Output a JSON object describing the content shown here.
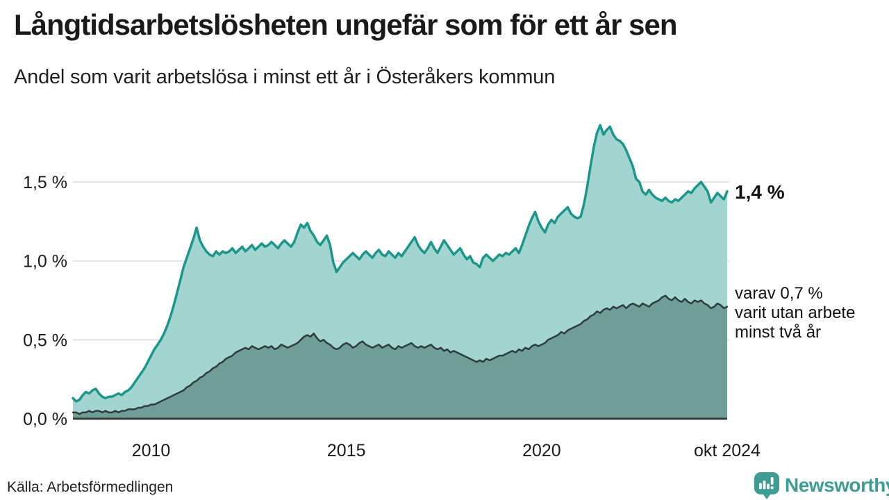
{
  "header": {
    "title": "Långtidsarbetslösheten ungefär som för ett år sen",
    "subtitle": "Andel som varit arbetslösa i minst ett år i Österåkers kommun"
  },
  "chart_data": {
    "type": "area",
    "unit": "%",
    "x_start": "2008-01",
    "x_end": "2024-10",
    "grid": "horizontal",
    "colors": {
      "grid": "#e4e4e4",
      "axis": "#3a3a3a",
      "text": "#1a1a1a"
    },
    "y_axis": {
      "ticks": [
        {
          "value": 0,
          "label": "0,0 %"
        },
        {
          "value": 0.5,
          "label": "0,5 %"
        },
        {
          "value": 1,
          "label": "1,0 %"
        },
        {
          "value": 1.5,
          "label": "1,5 %"
        }
      ],
      "ylim": [
        0,
        1.95
      ]
    },
    "x_axis": {
      "ticks": [
        {
          "index": 24,
          "label": "2010"
        },
        {
          "index": 84,
          "label": "2015"
        },
        {
          "index": 144,
          "label": "2020"
        },
        {
          "index": 201,
          "label": "okt 2024"
        }
      ]
    },
    "series": [
      {
        "name": "Arbetslösa minst ett år",
        "line_color": "#1a968c",
        "fill_color": "#a3d5d0",
        "line_width": 3.5,
        "end_label": "1,4 %",
        "values": [
          0.13,
          0.11,
          0.12,
          0.15,
          0.17,
          0.16,
          0.18,
          0.19,
          0.16,
          0.14,
          0.13,
          0.14,
          0.14,
          0.15,
          0.16,
          0.15,
          0.17,
          0.18,
          0.2,
          0.23,
          0.26,
          0.29,
          0.32,
          0.36,
          0.4,
          0.44,
          0.47,
          0.5,
          0.54,
          0.59,
          0.65,
          0.72,
          0.8,
          0.88,
          0.96,
          1.02,
          1.08,
          1.14,
          1.21,
          1.13,
          1.09,
          1.06,
          1.04,
          1.03,
          1.06,
          1.04,
          1.06,
          1.05,
          1.06,
          1.08,
          1.05,
          1.07,
          1.09,
          1.06,
          1.08,
          1.1,
          1.07,
          1.09,
          1.11,
          1.09,
          1.1,
          1.12,
          1.1,
          1.08,
          1.11,
          1.13,
          1.11,
          1.09,
          1.12,
          1.18,
          1.23,
          1.21,
          1.24,
          1.19,
          1.16,
          1.12,
          1.1,
          1.13,
          1.16,
          1.1,
          0.99,
          0.93,
          0.96,
          0.99,
          1.01,
          1.03,
          1.05,
          1.03,
          1.01,
          1.04,
          1.06,
          1.04,
          1.02,
          1.05,
          1.07,
          1.04,
          1.03,
          1.06,
          1.04,
          1.02,
          1.05,
          1.03,
          1.06,
          1.09,
          1.12,
          1.15,
          1.1,
          1.07,
          1.05,
          1.08,
          1.12,
          1.08,
          1.05,
          1.09,
          1.13,
          1.1,
          1.07,
          1.04,
          1.06,
          1.08,
          1.04,
          1.01,
          1.03,
          0.99,
          0.98,
          0.96,
          1.02,
          1.04,
          1.02,
          1.0,
          1.02,
          1.04,
          1.03,
          1.05,
          1.04,
          1.06,
          1.08,
          1.05,
          1.1,
          1.16,
          1.22,
          1.27,
          1.31,
          1.25,
          1.21,
          1.18,
          1.23,
          1.26,
          1.24,
          1.28,
          1.3,
          1.32,
          1.34,
          1.3,
          1.28,
          1.27,
          1.28,
          1.36,
          1.47,
          1.6,
          1.72,
          1.81,
          1.86,
          1.8,
          1.83,
          1.85,
          1.8,
          1.77,
          1.76,
          1.74,
          1.7,
          1.65,
          1.6,
          1.52,
          1.5,
          1.44,
          1.42,
          1.45,
          1.42,
          1.4,
          1.39,
          1.38,
          1.4,
          1.38,
          1.37,
          1.39,
          1.38,
          1.4,
          1.42,
          1.44,
          1.43,
          1.46,
          1.48,
          1.5,
          1.47,
          1.44,
          1.37,
          1.4,
          1.43,
          1.41,
          1.39,
          1.44
        ]
      },
      {
        "name": "varav utan arbete minst två år",
        "line_color": "#2e3c3a",
        "fill_color": "#6f9e99",
        "line_width": 2.5,
        "end_label_lines": [
          "varav 0,7 %",
          "varit utan arbete",
          "minst två år"
        ],
        "values": [
          0.04,
          0.04,
          0.03,
          0.04,
          0.04,
          0.05,
          0.04,
          0.05,
          0.05,
          0.04,
          0.05,
          0.04,
          0.04,
          0.05,
          0.04,
          0.05,
          0.05,
          0.06,
          0.06,
          0.06,
          0.07,
          0.07,
          0.08,
          0.08,
          0.09,
          0.09,
          0.1,
          0.11,
          0.12,
          0.13,
          0.14,
          0.15,
          0.16,
          0.17,
          0.18,
          0.2,
          0.21,
          0.23,
          0.24,
          0.26,
          0.27,
          0.29,
          0.3,
          0.32,
          0.33,
          0.35,
          0.36,
          0.38,
          0.39,
          0.4,
          0.42,
          0.43,
          0.44,
          0.45,
          0.44,
          0.46,
          0.45,
          0.44,
          0.45,
          0.46,
          0.45,
          0.46,
          0.44,
          0.45,
          0.47,
          0.46,
          0.45,
          0.46,
          0.47,
          0.48,
          0.5,
          0.52,
          0.53,
          0.52,
          0.54,
          0.51,
          0.49,
          0.5,
          0.48,
          0.47,
          0.45,
          0.44,
          0.45,
          0.47,
          0.48,
          0.47,
          0.45,
          0.46,
          0.48,
          0.49,
          0.47,
          0.46,
          0.45,
          0.46,
          0.47,
          0.45,
          0.46,
          0.47,
          0.45,
          0.44,
          0.46,
          0.45,
          0.46,
          0.47,
          0.48,
          0.46,
          0.45,
          0.46,
          0.45,
          0.46,
          0.47,
          0.45,
          0.44,
          0.45,
          0.43,
          0.44,
          0.42,
          0.43,
          0.42,
          0.41,
          0.4,
          0.39,
          0.38,
          0.37,
          0.36,
          0.37,
          0.36,
          0.38,
          0.37,
          0.38,
          0.39,
          0.4,
          0.4,
          0.41,
          0.42,
          0.43,
          0.42,
          0.44,
          0.43,
          0.45,
          0.44,
          0.46,
          0.47,
          0.46,
          0.47,
          0.48,
          0.5,
          0.51,
          0.52,
          0.53,
          0.55,
          0.54,
          0.56,
          0.57,
          0.58,
          0.59,
          0.6,
          0.62,
          0.63,
          0.65,
          0.66,
          0.68,
          0.67,
          0.69,
          0.7,
          0.69,
          0.71,
          0.7,
          0.71,
          0.72,
          0.7,
          0.72,
          0.73,
          0.72,
          0.71,
          0.73,
          0.72,
          0.71,
          0.73,
          0.74,
          0.75,
          0.77,
          0.78,
          0.76,
          0.75,
          0.77,
          0.75,
          0.74,
          0.76,
          0.74,
          0.73,
          0.75,
          0.74,
          0.75,
          0.73,
          0.72,
          0.7,
          0.71,
          0.73,
          0.72,
          0.7,
          0.71
        ]
      }
    ]
  },
  "footer": {
    "source": "Källa: Arbetsförmedlingen",
    "brand": "Newsworthy",
    "brand_color": "#3E9C94"
  }
}
